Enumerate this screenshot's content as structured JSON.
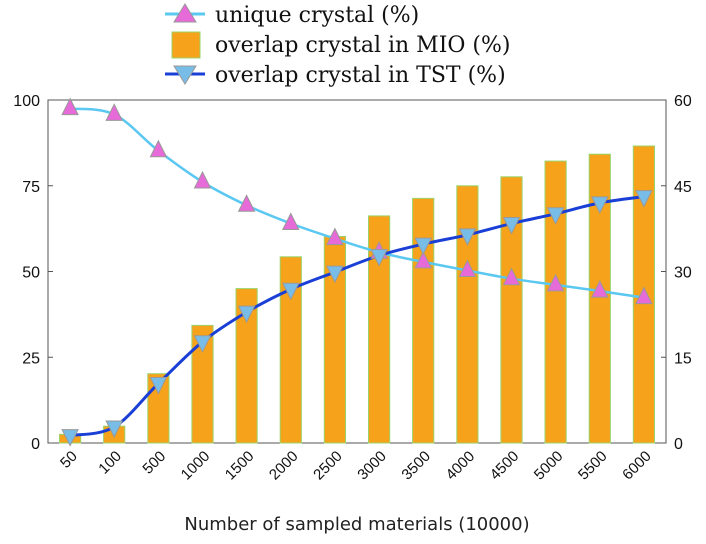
{
  "chart_data": {
    "type": "bar+line",
    "categories": [
      "50",
      "100",
      "500",
      "1000",
      "1500",
      "2000",
      "2500",
      "3000",
      "3500",
      "4000",
      "4500",
      "5000",
      "5500",
      "6000"
    ],
    "xlabel": "Number of sampled materials (10000)",
    "left_axis": {
      "ylim": [
        0,
        100
      ],
      "ticks": [
        0,
        25,
        50,
        75,
        100
      ]
    },
    "right_axis": {
      "ylim": [
        0,
        60
      ],
      "ticks": [
        0,
        15,
        30,
        45,
        60
      ]
    },
    "series": [
      {
        "name": "unique crystal (%)",
        "type": "line",
        "axis": "left",
        "marker": "triangle-up",
        "line_color": "#5bc8f2",
        "marker_color": "#e66ad8",
        "values": [
          97.5,
          95.8,
          85.2,
          76.1,
          69.3,
          64.0,
          59.6,
          55.6,
          52.8,
          50.3,
          47.9,
          46.1,
          44.3,
          42.4
        ]
      },
      {
        "name": "overlap crystal in MIO (%)",
        "type": "bar",
        "axis": "left",
        "color": "#f7a21b",
        "edge_color": "#9bd36a",
        "values": [
          2.5,
          4.9,
          20.2,
          34.3,
          45.0,
          54.3,
          60.2,
          66.2,
          71.3,
          75.0,
          77.6,
          82.2,
          84.2,
          86.6
        ]
      },
      {
        "name": "overlap crystal in TST (%)",
        "type": "line",
        "axis": "right",
        "marker": "triangle-down",
        "line_color": "#1a3fd6",
        "marker_color": "#78bde8",
        "values": [
          1.3,
          2.8,
          10.4,
          17.7,
          22.9,
          26.9,
          29.9,
          32.8,
          34.8,
          36.4,
          38.4,
          40.1,
          42.0,
          43.1
        ]
      }
    ],
    "grid": false,
    "legend_position": "top-center"
  }
}
